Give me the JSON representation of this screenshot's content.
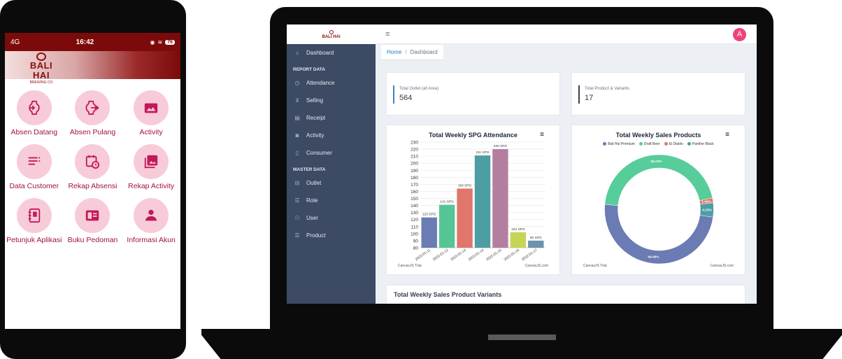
{
  "phone": {
    "status": {
      "signal": "4G",
      "time": "16:42",
      "battery": "76"
    },
    "brand": {
      "name": "BALI HAI",
      "subtitle": "BREWING CO"
    },
    "menu": [
      {
        "label": "Absen Datang",
        "icon": "login-watch-icon"
      },
      {
        "label": "Absen Pulang",
        "icon": "logout-watch-icon"
      },
      {
        "label": "Activity",
        "icon": "photo-icon"
      },
      {
        "label": "Data Customer",
        "icon": "list-icon"
      },
      {
        "label": "Rekap Absensi",
        "icon": "calendar-clock-icon"
      },
      {
        "label": "Rekap Activity",
        "icon": "gallery-icon"
      },
      {
        "label": "Petunjuk Aplikasi",
        "icon": "notebook-icon"
      },
      {
        "label": "Buku Pedoman",
        "icon": "book-icon"
      },
      {
        "label": "Informasi Akun",
        "icon": "user-card-icon"
      }
    ]
  },
  "dashboard": {
    "logo": {
      "name": "BALI HAI",
      "subtitle": "BREWING CO"
    },
    "avatar": "A",
    "sidebar": {
      "top_item": {
        "label": "Dashboard",
        "icon": "home-icon"
      },
      "report_header": "REPORT DATA",
      "report_items": [
        {
          "label": "Attendance",
          "icon": "clock-icon"
        },
        {
          "label": "Selling",
          "icon": "cart-icon"
        },
        {
          "label": "Receipt",
          "icon": "receipt-icon"
        },
        {
          "label": "Activity",
          "icon": "camera-icon"
        },
        {
          "label": "Consumer",
          "icon": "clipboard-icon"
        }
      ],
      "master_header": "MASTER DATA",
      "master_items": [
        {
          "label": "Outlet",
          "icon": "store-icon"
        },
        {
          "label": "Role",
          "icon": "list-icon"
        },
        {
          "label": "User",
          "icon": "users-icon"
        },
        {
          "label": "Product",
          "icon": "list-icon"
        }
      ]
    },
    "breadcrumb": {
      "home": "Home",
      "separator": "/",
      "current": "Dashboard"
    },
    "stats": [
      {
        "label": "Total Outlet (all Area)",
        "value": "564",
        "color": "#3b82c4"
      },
      {
        "label": "Total Product & Variants",
        "value": "17",
        "color": "#3a4151"
      }
    ],
    "variants_title": "Total Weekly Sales Product Variants",
    "chart_credit": {
      "left": "CanvasJS Trial",
      "right": "CanvasJS.com"
    },
    "pie_credit": {
      "left": "CanvasJS Trial",
      "right": "CanvasJS.com"
    }
  },
  "chart_data": [
    {
      "type": "bar",
      "title": "Total Weekly SPG Attendance",
      "categories": [
        "2022-01-11",
        "2022-01-12",
        "2022-01-13",
        "2022-01-14",
        "2022-01-15",
        "2022-01-16",
        "2022-01-17"
      ],
      "values": [
        123,
        141,
        164,
        211,
        220,
        102,
        90
      ],
      "data_labels": [
        "123 SPG",
        "141 SPG",
        "164 SPG",
        "211 SPG",
        "220 SPG",
        "102 SPG",
        "90 SPG"
      ],
      "colors": [
        "#6b7bb3",
        "#56c596",
        "#e0766c",
        "#4d9ea3",
        "#b47f9e",
        "#c9d457",
        "#6a93ad"
      ],
      "ylim": [
        80,
        230
      ],
      "yticks": [
        80,
        90,
        100,
        110,
        120,
        130,
        140,
        150,
        160,
        170,
        180,
        190,
        200,
        210,
        220,
        230
      ],
      "grid": true
    },
    {
      "type": "pie",
      "title": "Total Weekly Sales Products",
      "legend": "top",
      "series": [
        {
          "name": "Bali Hai Premium",
          "value": 49.06,
          "label": "49.06%",
          "color": "#6b7bb3"
        },
        {
          "name": "Draft Beer",
          "value": 45.23,
          "label": "45.23%",
          "color": "#56cd9a"
        },
        {
          "name": "El Diablo",
          "value": 1.44,
          "label": "1.44%",
          "color": "#e0766c"
        },
        {
          "name": "Panther Black",
          "value": 4.23,
          "label": "4.23%",
          "color": "#4d9ea3"
        }
      ]
    }
  ]
}
